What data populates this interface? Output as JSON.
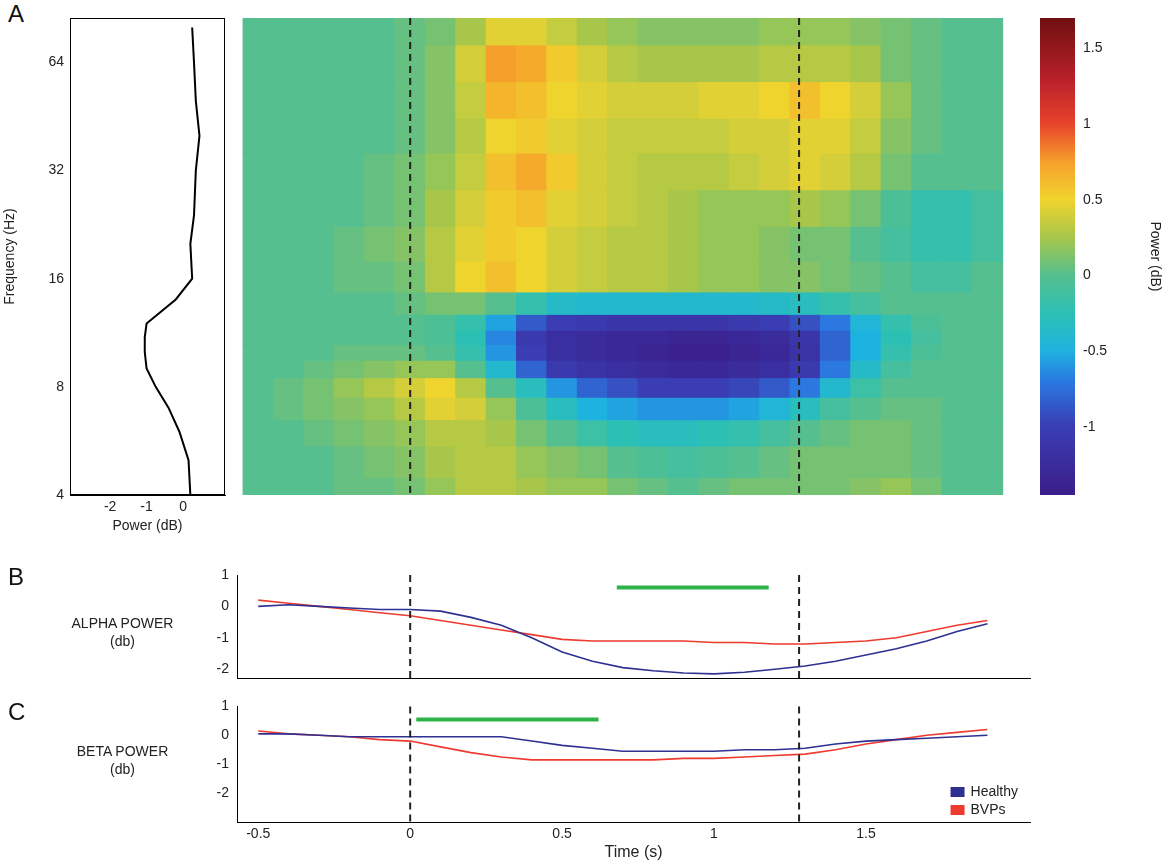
{
  "chart_data": [
    {
      "panel": "A",
      "type": "line",
      "x_label": "Power (dB)",
      "y_label": "Frequency (Hz)",
      "x": [
        0.2,
        0.15,
        -0.1,
        -0.4,
        -0.75,
        -1.0,
        -1.05,
        -1.05,
        -1.0,
        -0.2,
        0.25,
        0.2,
        0.3,
        0.35,
        0.45,
        0.35,
        0.3,
        0.25
      ],
      "y": [
        4,
        5,
        6,
        7,
        8,
        9,
        10,
        11,
        12,
        14,
        16,
        20,
        24,
        32,
        40,
        50,
        64,
        80
      ],
      "color": "#000000",
      "xlim": [
        -3.1,
        1.15
      ],
      "xticks": [
        -2,
        -1,
        0
      ],
      "ylim": [
        4,
        85
      ],
      "yticks": [
        4,
        8,
        16,
        32,
        64
      ],
      "log": "y",
      "grid": false
    },
    {
      "type": "heatmap",
      "x": [
        -0.5,
        -0.4,
        -0.3,
        -0.2,
        -0.1,
        0,
        0.1,
        0.2,
        0.3,
        0.4,
        0.5,
        0.6,
        0.7,
        0.8,
        0.9,
        1.0,
        1.1,
        1.2,
        1.3,
        1.4,
        1.5,
        1.6,
        1.7,
        1.8,
        1.9
      ],
      "y": [
        4,
        5,
        6,
        7,
        8,
        9,
        10,
        11,
        12,
        13.5,
        16,
        20,
        25,
        32,
        40,
        50,
        64,
        80
      ],
      "z": [
        [
          0,
          0,
          0,
          0.05,
          0.05,
          0.1,
          0.2,
          0.3,
          0.3,
          0.25,
          0.2,
          0.2,
          0.1,
          0.05,
          0,
          0.05,
          0.1,
          0.1,
          0.1,
          0.1,
          0.15,
          0.2,
          0.1,
          0,
          0
        ],
        [
          0,
          0,
          0,
          0.05,
          0.1,
          0.15,
          0.25,
          0.3,
          0.3,
          0.2,
          0.15,
          0.1,
          0,
          -0.05,
          -0.1,
          -0.05,
          0,
          0.05,
          0.1,
          0.1,
          0.1,
          0.1,
          0.05,
          0,
          0
        ],
        [
          0,
          0,
          0.05,
          0.1,
          0.15,
          0.2,
          0.3,
          0.3,
          0.25,
          0.1,
          0,
          -0.15,
          -0.25,
          -0.3,
          -0.3,
          -0.25,
          -0.2,
          -0.1,
          0,
          0.05,
          0.1,
          0.1,
          0.05,
          0,
          0
        ],
        [
          0,
          0.05,
          0.1,
          0.15,
          0.2,
          0.3,
          0.45,
          0.4,
          0.2,
          -0.05,
          -0.3,
          -0.5,
          -0.55,
          -0.6,
          -0.6,
          -0.6,
          -0.55,
          -0.45,
          -0.3,
          -0.1,
          0,
          0.05,
          0.05,
          0,
          0
        ],
        [
          0,
          0.05,
          0.1,
          0.2,
          0.3,
          0.4,
          0.5,
          0.3,
          0,
          -0.3,
          -0.6,
          -0.8,
          -0.9,
          -1.0,
          -1.0,
          -1.0,
          -0.95,
          -0.85,
          -0.7,
          -0.4,
          -0.15,
          0,
          0,
          0,
          0
        ],
        [
          0,
          0,
          0.05,
          0.1,
          0.15,
          0.2,
          0.2,
          0,
          -0.4,
          -0.8,
          -1.05,
          -1.15,
          -1.2,
          -1.25,
          -1.3,
          -1.3,
          -1.25,
          -1.2,
          -1.05,
          -0.7,
          -0.35,
          -0.1,
          0,
          0,
          0
        ],
        [
          0,
          0,
          0,
          0.05,
          0.05,
          0.05,
          0,
          -0.2,
          -0.6,
          -1.0,
          -1.2,
          -1.25,
          -1.3,
          -1.35,
          -1.4,
          -1.4,
          -1.35,
          -1.3,
          -1.15,
          -0.8,
          -0.5,
          -0.2,
          -0.05,
          0,
          0
        ],
        [
          0,
          0,
          0,
          0,
          0,
          0,
          -0.05,
          -0.25,
          -0.65,
          -1.05,
          -1.2,
          -1.25,
          -1.3,
          -1.3,
          -1.35,
          -1.35,
          -1.3,
          -1.25,
          -1.1,
          -0.8,
          -0.5,
          -0.25,
          -0.1,
          0,
          0
        ],
        [
          0,
          0,
          0,
          0,
          0,
          0,
          -0.05,
          -0.2,
          -0.55,
          -0.85,
          -1.0,
          -1.05,
          -1.1,
          -1.1,
          -1.1,
          -1.1,
          -1.05,
          -1.0,
          -0.9,
          -0.7,
          -0.45,
          -0.2,
          -0.05,
          0,
          0
        ],
        [
          0,
          0,
          0,
          0,
          0,
          0.05,
          0.1,
          0.1,
          0,
          -0.2,
          -0.35,
          -0.4,
          -0.4,
          -0.4,
          -0.4,
          -0.4,
          -0.4,
          -0.35,
          -0.3,
          -0.2,
          -0.1,
          0,
          0,
          0,
          0
        ],
        [
          0,
          0,
          0,
          0.05,
          0.05,
          0.1,
          0.3,
          0.5,
          0.6,
          0.5,
          0.4,
          0.35,
          0.3,
          0.3,
          0.25,
          0.2,
          0.2,
          0.15,
          0.15,
          0.1,
          0.05,
          0,
          -0.1,
          -0.1,
          0
        ],
        [
          0,
          0,
          0,
          0.05,
          0.1,
          0.15,
          0.3,
          0.45,
          0.55,
          0.5,
          0.4,
          0.35,
          0.3,
          0.3,
          0.25,
          0.2,
          0.2,
          0.15,
          0.1,
          0.1,
          0,
          -0.1,
          -0.2,
          -0.2,
          -0.1
        ],
        [
          0,
          0,
          0,
          0,
          0.05,
          0.1,
          0.25,
          0.4,
          0.55,
          0.6,
          0.45,
          0.4,
          0.35,
          0.3,
          0.25,
          0.2,
          0.2,
          0.2,
          0.25,
          0.2,
          0.1,
          -0.05,
          -0.2,
          -0.2,
          -0.1
        ],
        [
          0,
          0,
          0,
          0,
          0.05,
          0.1,
          0.2,
          0.35,
          0.6,
          0.7,
          0.55,
          0.4,
          0.35,
          0.3,
          0.3,
          0.3,
          0.35,
          0.4,
          0.45,
          0.4,
          0.3,
          0.1,
          0,
          0,
          0
        ],
        [
          0,
          0,
          0,
          0,
          0,
          0.05,
          0.15,
          0.3,
          0.5,
          0.55,
          0.45,
          0.4,
          0.35,
          0.35,
          0.35,
          0.35,
          0.4,
          0.4,
          0.45,
          0.45,
          0.35,
          0.15,
          0.05,
          0,
          0
        ],
        [
          0,
          0,
          0,
          0,
          0,
          0.05,
          0.15,
          0.35,
          0.65,
          0.6,
          0.5,
          0.45,
          0.4,
          0.4,
          0.4,
          0.45,
          0.45,
          0.5,
          0.6,
          0.5,
          0.4,
          0.2,
          0.05,
          0,
          0
        ],
        [
          0,
          0,
          0,
          0,
          0,
          0.05,
          0.15,
          0.4,
          0.75,
          0.7,
          0.55,
          0.4,
          0.3,
          0.25,
          0.25,
          0.25,
          0.25,
          0.3,
          0.3,
          0.3,
          0.25,
          0.1,
          0.05,
          0,
          0
        ],
        [
          0,
          0,
          0,
          0,
          0,
          0.05,
          0.1,
          0.25,
          0.45,
          0.45,
          0.35,
          0.25,
          0.2,
          0.15,
          0.15,
          0.15,
          0.15,
          0.2,
          0.2,
          0.2,
          0.15,
          0.1,
          0.05,
          0,
          0
        ]
      ],
      "xlim": [
        -0.57,
        2.04
      ],
      "ylim": [
        4,
        85
      ],
      "log": "y",
      "tick_labels": false,
      "vlines": [
        0,
        1.28
      ],
      "colorbar": {
        "label": "Power (dB)",
        "lim": [
          -1.45,
          1.7
        ],
        "ticks": [
          -1,
          -0.5,
          0,
          0.5,
          1,
          1.5
        ]
      }
    },
    {
      "panel": "B",
      "type": "line",
      "y_label": [
        "ALPHA POWER",
        "(db)"
      ],
      "x": [
        -0.5,
        -0.4,
        -0.3,
        -0.2,
        -0.1,
        0,
        0.1,
        0.2,
        0.3,
        0.4,
        0.5,
        0.6,
        0.7,
        0.8,
        0.9,
        1.0,
        1.1,
        1.2,
        1.3,
        1.4,
        1.5,
        1.6,
        1.7,
        1.8,
        1.9
      ],
      "series": [
        {
          "name": "Healthy",
          "color": "#2e3192",
          "values": [
            0.0,
            0.05,
            0.0,
            -0.05,
            -0.1,
            -0.1,
            -0.15,
            -0.35,
            -0.6,
            -1.0,
            -1.45,
            -1.75,
            -1.95,
            -2.05,
            -2.12,
            -2.15,
            -2.1,
            -2.0,
            -1.9,
            -1.75,
            -1.55,
            -1.35,
            -1.1,
            -0.8,
            -0.55
          ]
        },
        {
          "name": "BVPs",
          "color": "#ee3a2f",
          "values": [
            0.2,
            0.1,
            0.0,
            -0.1,
            -0.2,
            -0.3,
            -0.45,
            -0.6,
            -0.75,
            -0.9,
            -1.05,
            -1.1,
            -1.1,
            -1.1,
            -1.1,
            -1.15,
            -1.15,
            -1.2,
            -1.2,
            -1.15,
            -1.1,
            -1.0,
            -0.8,
            -0.6,
            -0.45
          ]
        }
      ],
      "significance": {
        "x": [
          0.68,
          1.18
        ],
        "y": 0.6,
        "color": "#2db34a"
      },
      "vlines": [
        0,
        1.28
      ],
      "xlim": [
        -0.57,
        2.04
      ],
      "ylim": [
        -2.3,
        1
      ],
      "yticks": [
        -2,
        -1,
        0,
        1
      ],
      "tick_labels": "y",
      "grid": false
    },
    {
      "panel": "C",
      "type": "line",
      "y_label": [
        "BETA POWER",
        "(db)"
      ],
      "x_label": "Time (s)",
      "x": [
        -0.5,
        -0.4,
        -0.3,
        -0.2,
        -0.1,
        0,
        0.1,
        0.2,
        0.3,
        0.4,
        0.5,
        0.6,
        0.7,
        0.8,
        0.9,
        1.0,
        1.1,
        1.2,
        1.3,
        1.4,
        1.5,
        1.6,
        1.7,
        1.8,
        1.9
      ],
      "series": [
        {
          "name": "Healthy",
          "color": "#2e3192",
          "values": [
            0.05,
            0.05,
            0.0,
            -0.05,
            -0.05,
            -0.05,
            -0.05,
            -0.05,
            -0.05,
            -0.2,
            -0.35,
            -0.45,
            -0.55,
            -0.55,
            -0.55,
            -0.55,
            -0.5,
            -0.5,
            -0.45,
            -0.3,
            -0.2,
            -0.15,
            -0.1,
            -0.05,
            0.0
          ]
        },
        {
          "name": "BVPs",
          "color": "#ee3a2f",
          "values": [
            0.15,
            0.05,
            0.0,
            -0.05,
            -0.15,
            -0.2,
            -0.4,
            -0.6,
            -0.75,
            -0.85,
            -0.85,
            -0.85,
            -0.85,
            -0.85,
            -0.8,
            -0.8,
            -0.75,
            -0.7,
            -0.65,
            -0.5,
            -0.3,
            -0.15,
            0.0,
            0.1,
            0.2
          ]
        }
      ],
      "significance": {
        "x": [
          0.02,
          0.62
        ],
        "y": 0.55,
        "color": "#2db34a"
      },
      "vlines": [
        0,
        1.28
      ],
      "xlim": [
        -0.57,
        2.04
      ],
      "xticks": [
        -0.5,
        0,
        0.5,
        1,
        1.5
      ],
      "ylim": [
        -3,
        1
      ],
      "yticks": [
        -2,
        -1,
        0,
        1
      ],
      "legend": "lower right",
      "grid": false
    }
  ]
}
